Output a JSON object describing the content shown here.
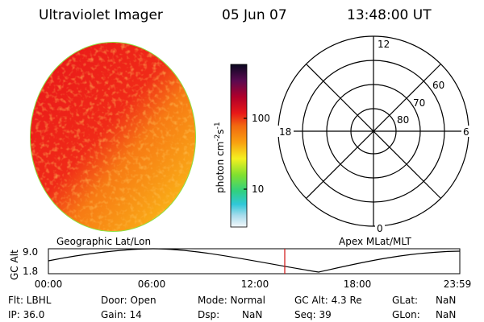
{
  "header": {
    "title": "Ultraviolet Imager",
    "date": "05 Jun 07",
    "time": "13:48:00 UT"
  },
  "colorbar": {
    "label": "photon cm",
    "exp1": "-2",
    "unit2": "s",
    "exp2": "-1",
    "ticks": [
      "100",
      "10"
    ]
  },
  "polar": {
    "mlt_labels": [
      "12",
      "0",
      "18",
      "6"
    ],
    "lat_labels": [
      "60",
      "70",
      "80"
    ]
  },
  "orbit": {
    "left_title": "Geographic Lat/Lon",
    "right_title": "Apex MLat/MLT",
    "y_label": "GC Alt",
    "y_ticks": [
      "9.0",
      "1.8"
    ],
    "x_ticks": [
      "00:00",
      "06:00",
      "12:00",
      "18:00",
      "23:59"
    ]
  },
  "info": {
    "rows": [
      [
        "Flt: LBHL",
        "Door: Open",
        "Mode: Normal",
        "GC Alt: 4.3 Re",
        "GLat:",
        "NaN"
      ],
      [
        "IP: 36.0",
        "Gain: 14",
        "Dsp:",
        "NaN",
        "Seq: 39",
        "GLon:",
        "NaN"
      ]
    ]
  }
}
